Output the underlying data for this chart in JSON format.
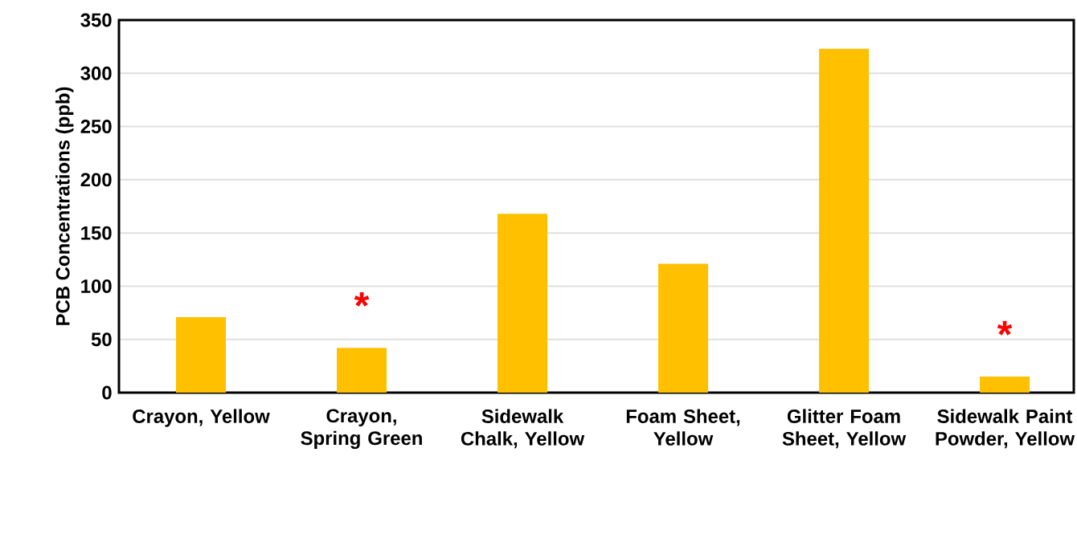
{
  "chart_data": {
    "type": "bar",
    "ylabel": "PCB Concentrations (ppb)",
    "categories": [
      "Crayon, Yellow",
      "Crayon, Spring Green",
      "Sidewalk Chalk, Yellow",
      "Foam Sheet, Yellow",
      "Glitter Foam Sheet, Yellow",
      "Sidewalk Paint Powder, Yellow"
    ],
    "values": [
      71,
      42,
      168,
      121,
      323,
      15
    ],
    "color": "#ffc000",
    "ylim": [
      0,
      350
    ],
    "yticks": [
      0,
      50,
      100,
      150,
      200,
      250,
      300,
      350
    ],
    "grid": "y",
    "annotations": [
      {
        "text": "*",
        "x": "Crayon, Spring Green",
        "y": 42
      },
      {
        "text": "*",
        "x": "Sidewalk Paint Powder, Yellow",
        "y": 15
      }
    ]
  }
}
